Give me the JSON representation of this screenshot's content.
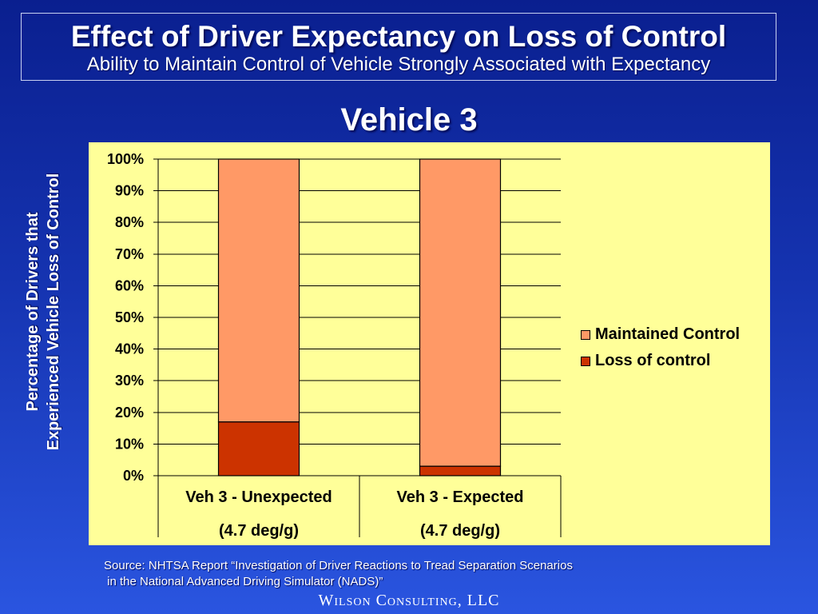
{
  "slide": {
    "title": "Effect of Driver Expectancy on Loss of Control",
    "subtitle": "Ability to Maintain Control of Vehicle Strongly Associated with Expectancy",
    "source_line1": "Source: NHTSA Report “Investigation of Driver Reactions to Tread Separation Scenarios",
    "source_line2": " in the National Advanced Driving Simulator (NADS)”",
    "footer": "Wilson Consulting, LLC"
  },
  "chart_data": {
    "type": "bar",
    "stacked": true,
    "percent": true,
    "title": "Vehicle 3",
    "ylabel_lines": [
      "Percentage of Drivers that",
      "Experienced Vehicle Loss of Control"
    ],
    "xlabel": "",
    "ylim": [
      0,
      100
    ],
    "yticks": [
      "0%",
      "10%",
      "20%",
      "30%",
      "40%",
      "50%",
      "60%",
      "70%",
      "80%",
      "90%",
      "100%"
    ],
    "categories": [
      [
        "Veh 3 - Unexpected",
        "(4.7 deg/g)"
      ],
      [
        "Veh 3 - Expected",
        "(4.7 deg/g)"
      ]
    ],
    "series": [
      {
        "name": "Loss of control",
        "values": [
          17,
          3
        ],
        "color": "#cc3300"
      },
      {
        "name": "Maintained Control",
        "values": [
          83,
          97
        ],
        "color": "#ff9966"
      }
    ],
    "grid": true,
    "legend_position": "right",
    "plot_background": "#ffff99"
  }
}
